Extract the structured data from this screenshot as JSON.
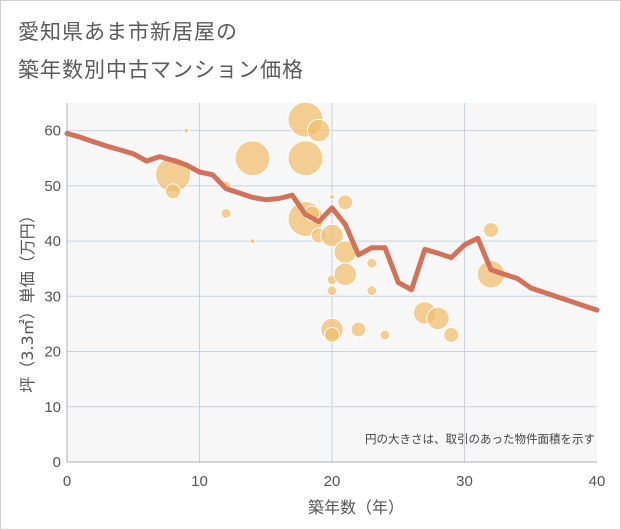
{
  "title_line1": "愛知県あま市新居屋の",
  "title_line2": "築年数別中古マンション価格",
  "note": "円の大きさは、取引のあった物件面積を示す",
  "colors": {
    "bubble": "#f1bf6f",
    "line": "#d2725b",
    "grid": "#c5d4e3",
    "plot_bg": "#f7f7f7"
  },
  "chart_data": {
    "type": "scatter",
    "xlabel": "築年数（年）",
    "ylabel": "坪（3.3㎡）単価（万円）",
    "xlim": [
      0,
      40
    ],
    "ylim": [
      0,
      65
    ],
    "x_ticks": [
      "0",
      "10",
      "20",
      "30",
      "40"
    ],
    "y_ticks": [
      "0",
      "10",
      "20",
      "30",
      "40",
      "50",
      "60"
    ],
    "grid": true,
    "bubbles": [
      {
        "x": 8,
        "y": 52,
        "size": 14
      },
      {
        "x": 8,
        "y": 49,
        "size": 6
      },
      {
        "x": 9,
        "y": 60,
        "size": 2
      },
      {
        "x": 12,
        "y": 50,
        "size": 4
      },
      {
        "x": 12,
        "y": 45,
        "size": 4
      },
      {
        "x": 14,
        "y": 55,
        "size": 14
      },
      {
        "x": 14,
        "y": 40,
        "size": 2
      },
      {
        "x": 18,
        "y": 62,
        "size": 14
      },
      {
        "x": 18,
        "y": 55,
        "size": 14
      },
      {
        "x": 18,
        "y": 44,
        "size": 14
      },
      {
        "x": 18.5,
        "y": 45,
        "size": 6
      },
      {
        "x": 19,
        "y": 60,
        "size": 9
      },
      {
        "x": 19,
        "y": 41,
        "size": 6
      },
      {
        "x": 20,
        "y": 48,
        "size": 2
      },
      {
        "x": 20,
        "y": 41,
        "size": 9
      },
      {
        "x": 20,
        "y": 33,
        "size": 4
      },
      {
        "x": 20,
        "y": 31,
        "size": 4
      },
      {
        "x": 20,
        "y": 24,
        "size": 9
      },
      {
        "x": 20,
        "y": 23,
        "size": 6
      },
      {
        "x": 21,
        "y": 47,
        "size": 6
      },
      {
        "x": 21,
        "y": 38,
        "size": 9
      },
      {
        "x": 21,
        "y": 34,
        "size": 9
      },
      {
        "x": 22,
        "y": 24,
        "size": 6
      },
      {
        "x": 23,
        "y": 36,
        "size": 4
      },
      {
        "x": 23,
        "y": 31,
        "size": 4
      },
      {
        "x": 24,
        "y": 23,
        "size": 4
      },
      {
        "x": 27,
        "y": 27,
        "size": 9
      },
      {
        "x": 28,
        "y": 26,
        "size": 9
      },
      {
        "x": 29,
        "y": 23,
        "size": 6
      },
      {
        "x": 32,
        "y": 42,
        "size": 6
      },
      {
        "x": 32,
        "y": 34,
        "size": 11
      }
    ],
    "trend_line": {
      "x": [
        0,
        1,
        2,
        3,
        4,
        5,
        6,
        7,
        8,
        9,
        10,
        11,
        12,
        13,
        14,
        15,
        16,
        17,
        18,
        19,
        20,
        21,
        22,
        23,
        24,
        25,
        26,
        27,
        28,
        29,
        30,
        31,
        32,
        33,
        34,
        35,
        36,
        37,
        38,
        39,
        40
      ],
      "y": [
        59.5,
        58.8,
        58,
        57.2,
        56.5,
        55.8,
        54.5,
        55.3,
        54.6,
        53.8,
        52.5,
        52.0,
        49.5,
        48.7,
        47.9,
        47.5,
        47.7,
        48.3,
        44.8,
        43.5,
        46.0,
        43.0,
        37.5,
        38.8,
        38.8,
        32.5,
        31.2,
        38.5,
        37.8,
        37.0,
        39.3,
        40.5,
        34.8,
        34.0,
        33.2,
        31.5,
        30.7,
        29.9,
        29.1,
        28.3,
        27.5
      ]
    }
  }
}
